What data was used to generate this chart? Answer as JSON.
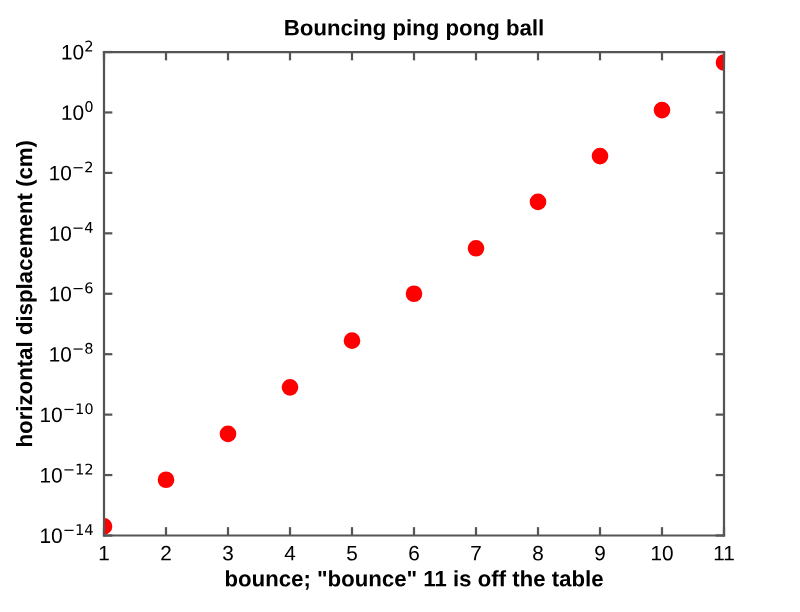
{
  "chart_data": {
    "type": "scatter",
    "title": "Bouncing ping pong ball",
    "xlabel": "bounce; \"bounce\" 11 is off the table",
    "ylabel": "horizontal displacement (cm)",
    "x": [
      1,
      2,
      3,
      4,
      5,
      6,
      7,
      8,
      9,
      10,
      11
    ],
    "series": [
      {
        "color": "#ff0000",
        "values": [
          2e-14,
          7e-13,
          2.3e-11,
          8e-10,
          2.8e-08,
          1e-06,
          3.2e-05,
          0.0011,
          0.036,
          1.2,
          45
        ]
      }
    ],
    "log": "y",
    "marker": "circle",
    "grid": false,
    "xlim": [
      1,
      11
    ],
    "xticks": [
      1,
      2,
      3,
      4,
      5,
      6,
      7,
      8,
      9,
      10,
      11
    ],
    "ylim": [
      1e-14,
      100
    ],
    "yticks": [
      {
        "value": 1e-14,
        "label": "10$^{−14}$"
      },
      {
        "value": 1e-12,
        "label": "10$^{−12}$"
      },
      {
        "value": 1e-10,
        "label": "10$^{−10}$"
      },
      {
        "value": 1e-08,
        "label": "10$^{−8}$"
      },
      {
        "value": 1e-06,
        "label": "10$^{−6}$"
      },
      {
        "value": 0.0001,
        "label": "10$^{−4}$"
      },
      {
        "value": 0.01,
        "label": "10$^{−2}$"
      },
      {
        "value": 1,
        "label": "10$^{0}$"
      },
      {
        "value": 100,
        "label": "10$^{2}$"
      }
    ]
  }
}
